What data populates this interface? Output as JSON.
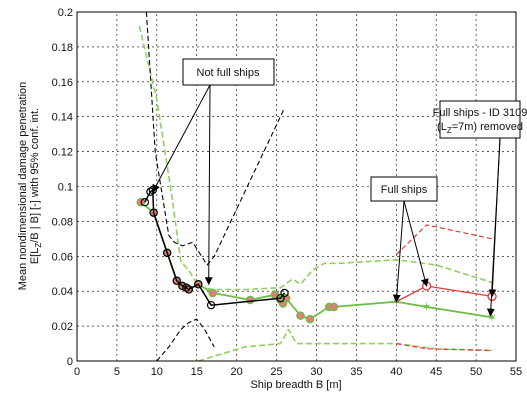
{
  "chart_data": {
    "type": "line",
    "title": "",
    "xlabel": "Ship breadth B [m]",
    "ylabel_lines": [
      "Mean nondimensional damage penetration",
      "E[L",
      "Z",
      "/B | B] [-] with 95% conf. int."
    ],
    "xlim": [
      0,
      55
    ],
    "ylim": [
      0,
      0.2
    ],
    "xticks": [
      0,
      5,
      10,
      15,
      20,
      25,
      30,
      35,
      40,
      45,
      50,
      55
    ],
    "yticks": [
      0,
      0.02,
      0.04,
      0.06,
      0.08,
      0.1,
      0.12,
      0.14,
      0.16,
      0.18,
      0.2
    ],
    "grid": true,
    "colors": {
      "black": "#000000",
      "green": "#6cbd45",
      "green_light": "#8fd060",
      "red": "#e03a3a",
      "marker_fill": "#e87a7a"
    },
    "series": [
      {
        "style": "black-circles",
        "x": [
          8.5,
          9.2,
          9.5,
          9.6,
          11.3,
          12.5,
          13.2,
          13.7,
          14.0,
          15.2,
          16.8,
          25.5,
          26.0
        ],
        "y": [
          0.091,
          0.097,
          0.098,
          0.085,
          0.062,
          0.046,
          0.043,
          0.042,
          0.041,
          0.044,
          0.032,
          0.036,
          0.039
        ]
      },
      {
        "style": "black-dashed-upper",
        "x": [
          8.7,
          9.8,
          11.5,
          12.2,
          13.2,
          14.5,
          15.2,
          16.3,
          17.2,
          26.0
        ],
        "y": [
          0.2,
          0.12,
          0.072,
          0.068,
          0.066,
          0.068,
          0.063,
          0.055,
          0.06,
          0.145
        ]
      },
      {
        "style": "black-dashed-lower",
        "x": [
          10.0,
          11.5,
          13.0,
          14.0,
          15.0,
          16.0,
          17.2
        ],
        "y": [
          0.0,
          0.008,
          0.018,
          0.022,
          0.024,
          0.018,
          0.008
        ]
      },
      {
        "style": "green-mean",
        "x": [
          8.0,
          9.6,
          11.3,
          12.5,
          13.2,
          14.0,
          15.2,
          17.0,
          21.7,
          24.8,
          25.5,
          25.8,
          26.2,
          28.0,
          29.2,
          31.6,
          32.2,
          40.0,
          43.8,
          52.0
        ],
        "y": [
          0.091,
          0.085,
          0.062,
          0.046,
          0.043,
          0.041,
          0.044,
          0.039,
          0.035,
          0.038,
          0.035,
          0.033,
          0.036,
          0.026,
          0.024,
          0.031,
          0.031,
          0.034,
          0.031,
          0.025
        ]
      },
      {
        "style": "green-dashed-upper",
        "x": [
          7.8,
          10.0,
          11.8,
          13.0,
          14.0,
          15.2,
          17.0,
          21.0,
          25.5,
          27.0,
          28.0,
          29.5,
          31.0,
          33.0,
          40.0,
          45.0,
          52.0
        ],
        "y": [
          0.192,
          0.15,
          0.097,
          0.057,
          0.052,
          0.043,
          0.041,
          0.041,
          0.042,
          0.047,
          0.044,
          0.052,
          0.056,
          0.056,
          0.058,
          0.055,
          0.045
        ]
      },
      {
        "style": "green-dashed-lower",
        "x": [
          15.2,
          21.0,
          25.5,
          26.5,
          27.5,
          31.0,
          40.0,
          45.0,
          52.0
        ],
        "y": [
          0.0,
          0.008,
          0.01,
          0.018,
          0.01,
          0.01,
          0.01,
          0.007,
          0.006
        ]
      },
      {
        "style": "red-mean",
        "x": [
          40.0,
          43.8,
          52.0
        ],
        "y": [
          0.034,
          0.043,
          0.037
        ]
      },
      {
        "style": "red-dashed-upper",
        "x": [
          40.0,
          43.8,
          52.0
        ],
        "y": [
          0.061,
          0.078,
          0.07
        ]
      },
      {
        "style": "red-dashed-lower",
        "x": [
          40.0,
          43.8,
          52.0
        ],
        "y": [
          0.01,
          0.007,
          0.006
        ]
      }
    ],
    "annotations": [
      {
        "text": "Not full ships",
        "box": true,
        "arrows_to": [
          [
            9.5,
            0.097
          ],
          [
            16.5,
            0.044
          ]
        ]
      },
      {
        "text": "Full ships",
        "box": true,
        "arrows_to": [
          [
            43.8,
            0.043
          ],
          [
            40.0,
            0.034
          ]
        ]
      },
      {
        "text": "Full ships - ID 3109",
        "line2a": "(L",
        "line2sub": "Z",
        "line2b": "=7m) removed",
        "box": true,
        "arrows_to": [
          [
            52.0,
            0.037
          ],
          [
            51.8,
            0.026
          ]
        ]
      }
    ]
  }
}
